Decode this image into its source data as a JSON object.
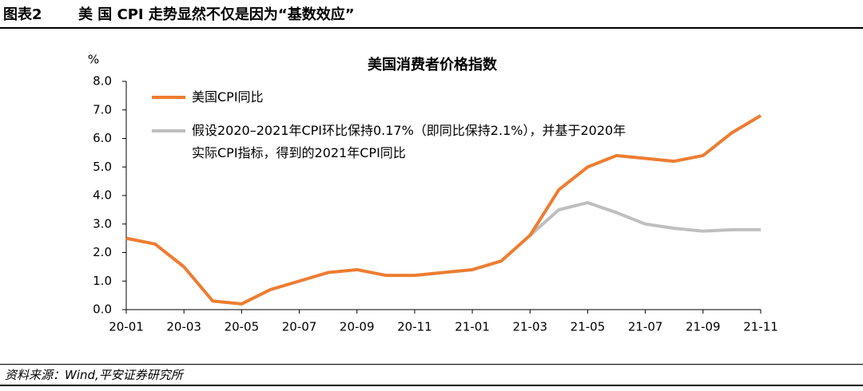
{
  "header": {
    "label": "图表2",
    "title": "美 国 CPI 走势显然不仅是因为“基数效应”"
  },
  "chart_data": {
    "type": "line",
    "title": "美国消费者价格指数",
    "y_unit": "%",
    "categories": [
      "20-01",
      null,
      "20-03",
      null,
      "20-05",
      null,
      "20-07",
      null,
      "20-09",
      null,
      "20-11",
      null,
      "21-01",
      null,
      "21-03",
      null,
      "21-05",
      null,
      "21-07",
      null,
      "21-09",
      null,
      "21-11"
    ],
    "series": [
      {
        "name": "美国CPI同比",
        "color": "#ed7d31",
        "values": [
          2.5,
          2.3,
          1.5,
          0.3,
          0.2,
          0.7,
          1.0,
          1.3,
          1.4,
          1.2,
          1.2,
          1.3,
          1.4,
          1.7,
          2.6,
          4.2,
          5.0,
          5.4,
          5.3,
          5.2,
          5.4,
          6.2,
          6.8
        ]
      },
      {
        "name": "假设2020–2021年CPI环比保持0.17%（即同比保持2.1%），并基于2020年实际CPI指标，得到的2021年CPI同比",
        "color": "#bfbfbf",
        "values": [
          null,
          null,
          null,
          null,
          null,
          null,
          null,
          null,
          null,
          null,
          null,
          null,
          null,
          null,
          2.6,
          3.5,
          3.75,
          3.4,
          3.0,
          2.85,
          2.75,
          2.8,
          2.8
        ]
      }
    ],
    "ylim": [
      0,
      8
    ],
    "yticks": [
      {
        "value": 0,
        "label": "0.0"
      },
      {
        "value": 1,
        "label": "1.0"
      },
      {
        "value": 2,
        "label": "2.0"
      },
      {
        "value": 3,
        "label": "3.0"
      },
      {
        "value": 4,
        "label": "4.0"
      },
      {
        "value": 5,
        "label": "5.0"
      },
      {
        "value": 6,
        "label": "6.0"
      },
      {
        "value": 7,
        "label": "7.0"
      },
      {
        "value": 8,
        "label": "8.0"
      }
    ],
    "grid": false,
    "legend": "top-left"
  },
  "footer": {
    "source": "资料来源：Wind,平安证券研究所"
  }
}
